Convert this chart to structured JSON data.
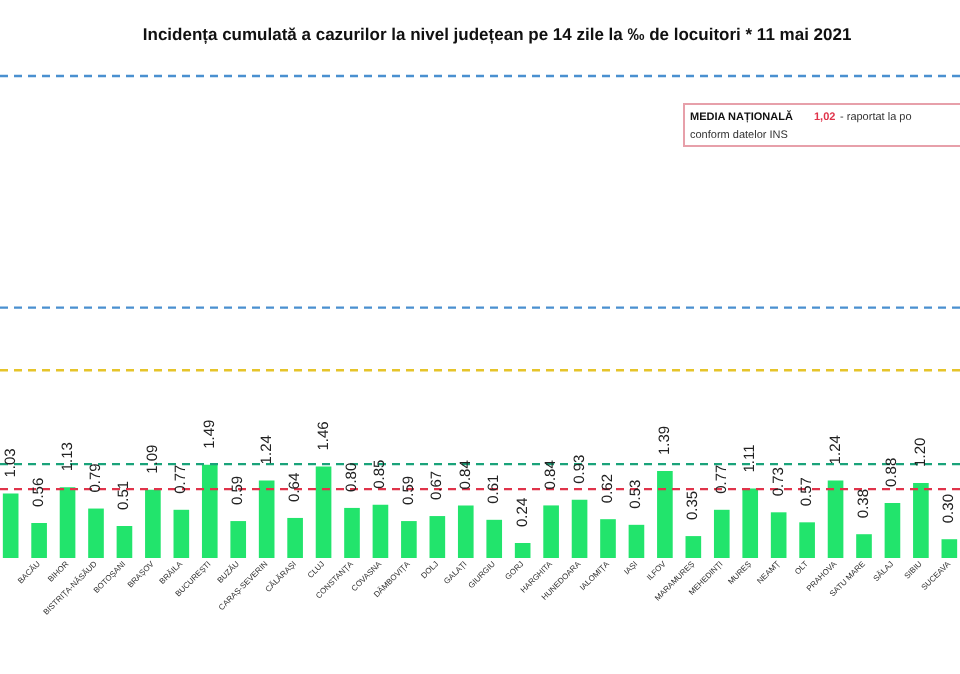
{
  "chart_data": {
    "type": "bar",
    "title": "Incidența cumulată a cazurilor la nivel județean pe 14 zile la ‰ de locuitori *  11 mai 2021",
    "categories": [
      null,
      "BACĂU",
      "BIHOR",
      "BISTRIȚA-NĂSĂUD",
      "BOTOȘANI",
      "BRAȘOV",
      "BRĂILA",
      "BUCUREȘTI",
      "BUZĂU",
      "CARAȘ-SEVERIN",
      "CĂLĂRAȘI",
      "CLUJ",
      "CONSTANȚA",
      "COVASNA",
      "DÂMBOVIȚA",
      "DOLJ",
      "GALAȚI",
      "GIURGIU",
      "GORJ",
      "HARGHITA",
      "HUNEDOARA",
      "IALOMIȚA",
      "IAȘI",
      "ILFOV",
      "MARAMUREȘ",
      "MEHEDINȚI",
      "MUREȘ",
      "NEAMȚ",
      "OLT",
      "PRAHOVA",
      "SATU MARE",
      "SĂLAJ",
      "SIBIU",
      "SUCEAVA"
    ],
    "values": [
      1.03,
      0.56,
      1.13,
      0.79,
      0.51,
      1.09,
      0.77,
      1.49,
      0.59,
      1.24,
      0.64,
      1.46,
      0.8,
      0.85,
      0.59,
      0.67,
      0.84,
      0.61,
      0.24,
      0.84,
      0.93,
      0.62,
      0.53,
      1.39,
      0.35,
      0.77,
      1.11,
      0.73,
      0.57,
      1.24,
      0.38,
      0.88,
      1.2,
      0.3
    ],
    "value_labels": [
      "1.03",
      "0.56",
      "1.13",
      "0.79",
      "0.51",
      "1.09",
      "0.77",
      "1.49",
      "0.59",
      "1.24",
      "0.64",
      "1.46",
      "0.80",
      "0.85",
      "0.59",
      "0.67",
      "0.84",
      "0.61",
      "0.24",
      "0.84",
      "0.93",
      "0.62",
      "0.53",
      "1.39",
      "0.35",
      "0.77",
      "1.11",
      "0.73",
      "0.57",
      "1.24",
      "0.38",
      "0.88",
      "1.20",
      "0.30"
    ],
    "color": "#22e46c",
    "ref_lines": [
      {
        "axis": "y",
        "value": 1.1,
        "color": "#e0334a",
        "line_style": "dashed"
      },
      {
        "axis": "y",
        "value": 1.5,
        "color": "#1aa37a",
        "line_style": "dashed"
      },
      {
        "axis": "y",
        "value": 3,
        "color": "#e6c42a",
        "line_style": "dashed"
      },
      {
        "axis": "y",
        "value": 4,
        "color": "#4a90d0",
        "line_style": "dashed"
      },
      {
        "axis": "y",
        "value": 7.7,
        "color": "#4a90d0",
        "line_style": "dashed"
      }
    ],
    "annotations": [
      "MEDIA NAȚIONALĂ",
      "1,02",
      "- raportat la po",
      "conform datelor INS"
    ]
  }
}
